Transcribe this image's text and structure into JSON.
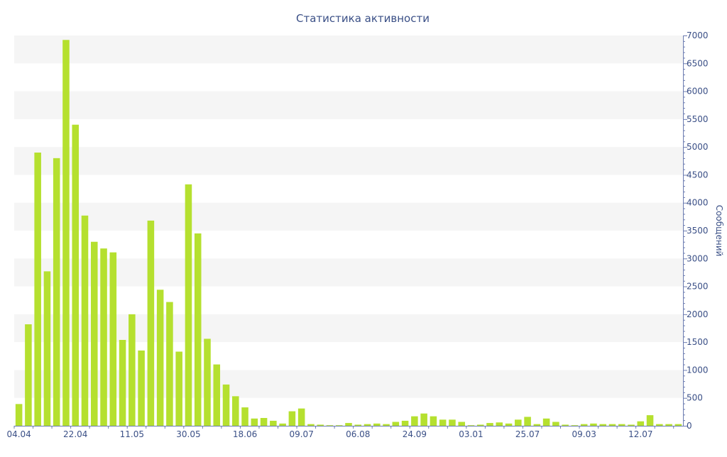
{
  "chart_data": {
    "type": "bar",
    "title": "Статистика активности",
    "ylabel": "Сообщений",
    "xlabel": "",
    "ylim": [
      0,
      7000
    ],
    "yticks": [
      0,
      500,
      1000,
      1500,
      2000,
      2500,
      3000,
      3500,
      4000,
      4500,
      5000,
      5500,
      6000,
      6500,
      7000
    ],
    "y_axis_side": "right",
    "grid": "alternating horizontal bands",
    "bar_color": "#b5e02f",
    "band_color": "#f5f5f5",
    "text_color": "#3a4f86",
    "x_tick_labels": [
      {
        "index": 0,
        "label": "04.04"
      },
      {
        "index": 6,
        "label": "22.04"
      },
      {
        "index": 12,
        "label": "11.05"
      },
      {
        "index": 18,
        "label": "30.05"
      },
      {
        "index": 24,
        "label": "18.06"
      },
      {
        "index": 30,
        "label": "09.07"
      },
      {
        "index": 36,
        "label": "06.08"
      },
      {
        "index": 42,
        "label": "24.09"
      },
      {
        "index": 48,
        "label": "03.01"
      },
      {
        "index": 54,
        "label": "25.07"
      },
      {
        "index": 60,
        "label": "09.03"
      },
      {
        "index": 66,
        "label": "12.07"
      }
    ],
    "values": [
      390,
      1820,
      4900,
      2770,
      4800,
      6920,
      5400,
      3770,
      3300,
      3180,
      3110,
      1540,
      2000,
      1350,
      3680,
      2440,
      2220,
      1330,
      4330,
      3450,
      1560,
      1100,
      740,
      530,
      330,
      130,
      140,
      90,
      40,
      260,
      310,
      30,
      20,
      10,
      10,
      50,
      20,
      30,
      40,
      30,
      70,
      90,
      170,
      220,
      170,
      110,
      110,
      70,
      10,
      20,
      50,
      60,
      40,
      110,
      160,
      30,
      130,
      70,
      20,
      10,
      30,
      40,
      30,
      30,
      30,
      20,
      80,
      190,
      30,
      30,
      30
    ]
  }
}
